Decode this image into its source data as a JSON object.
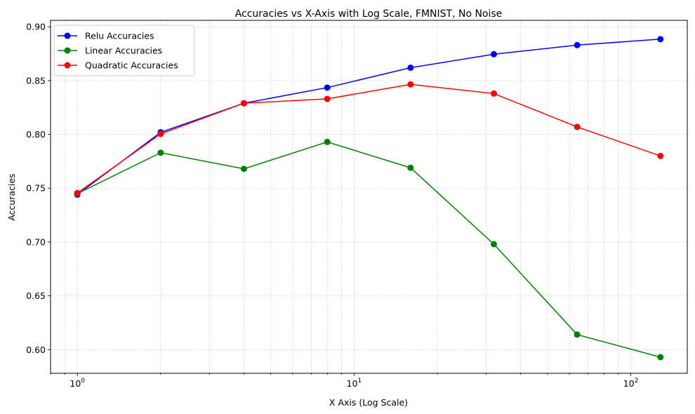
{
  "chart_data": {
    "type": "line",
    "title": "Accuracies vs X-Axis with Log Scale, FMNIST, No Noise",
    "xlabel": "X Axis (Log Scale)",
    "ylabel": "Accuracies",
    "xscale": "log",
    "xlim": [
      0.8,
      160
    ],
    "ylim": [
      0.578,
      0.906
    ],
    "grid": true,
    "legend_position": "top-left",
    "x": [
      1,
      2,
      4,
      8,
      16,
      32,
      64,
      128
    ],
    "series": [
      {
        "name": "Relu Accuracies",
        "color": "#0000ff",
        "values": [
          0.744,
          0.802,
          0.829,
          0.8435,
          0.862,
          0.8745,
          0.883,
          0.8885
        ]
      },
      {
        "name": "Linear Accuracies",
        "color": "#008000",
        "values": [
          0.745,
          0.783,
          0.768,
          0.793,
          0.769,
          0.698,
          0.614,
          0.593
        ]
      },
      {
        "name": "Quadratic Accuracies",
        "color": "#ff0000",
        "values": [
          0.7455,
          0.8005,
          0.829,
          0.833,
          0.8465,
          0.838,
          0.807,
          0.78
        ]
      }
    ],
    "y_ticks": [
      0.6,
      0.65,
      0.7,
      0.75,
      0.8,
      0.85,
      0.9
    ],
    "y_tick_labels": [
      "0.60",
      "0.65",
      "0.70",
      "0.75",
      "0.80",
      "0.85",
      "0.90"
    ],
    "x_major_ticks": [
      1,
      10,
      100
    ],
    "x_tick_labels": [
      {
        "base": "10",
        "exp": "0"
      },
      {
        "base": "10",
        "exp": "1"
      },
      {
        "base": "10",
        "exp": "2"
      }
    ]
  }
}
